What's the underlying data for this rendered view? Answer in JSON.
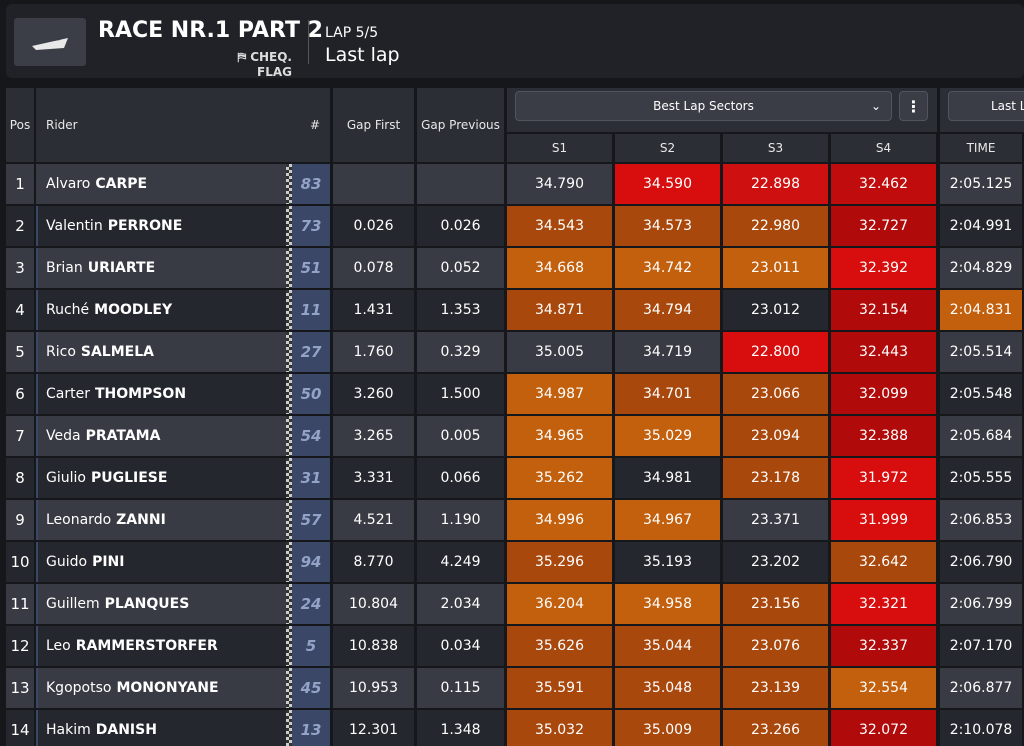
{
  "header": {
    "title": "RACE NR.1 PART 2",
    "flag": "CHEQ. FLAG",
    "lap": "LAP 5/5",
    "status": "Last lap"
  },
  "columns": {
    "pos": "Pos",
    "rider": "Rider",
    "number": "#",
    "gap_first": "Gap First",
    "gap_previous": "Gap Previous",
    "sectors_select": "Best Lap Sectors",
    "sectors": [
      "S1",
      "S2",
      "S3",
      "S4"
    ],
    "time": "TIME",
    "last_lap": "Last Lap"
  },
  "rows": [
    {
      "pos": "1",
      "first": "Alvaro",
      "last": "CARPE",
      "number": "83",
      "gap_first": "",
      "gap_previous": "",
      "sectors": [
        "34.790",
        "34.590",
        "22.898",
        "32.462"
      ],
      "sector_colors": [
        null,
        "#d80d0d",
        "#cf1010",
        "#c00c0c"
      ],
      "time": "2:05.125",
      "time_color": null
    },
    {
      "pos": "2",
      "first": "Valentin",
      "last": "PERRONE",
      "number": "73",
      "gap_first": "0.026",
      "gap_previous": "0.026",
      "sectors": [
        "34.543",
        "34.573",
        "22.980",
        "32.727"
      ],
      "sector_colors": [
        "#a8480c",
        "#a8480c",
        "#a8480c",
        "#b00a0a"
      ],
      "time": "2:04.991",
      "time_color": null
    },
    {
      "pos": "3",
      "first": "Brian",
      "last": "URIARTE",
      "number": "51",
      "gap_first": "0.078",
      "gap_previous": "0.052",
      "sectors": [
        "34.668",
        "34.742",
        "23.011",
        "32.392"
      ],
      "sector_colors": [
        "#c2600e",
        "#c2600e",
        "#c2600e",
        "#d80d0d"
      ],
      "time": "2:04.829",
      "time_color": null
    },
    {
      "pos": "4",
      "first": "Ruché",
      "last": "MOODLEY",
      "number": "11",
      "gap_first": "1.431",
      "gap_previous": "1.353",
      "sectors": [
        "34.871",
        "34.794",
        "23.012",
        "32.154"
      ],
      "sector_colors": [
        "#a8480c",
        "#a8480c",
        null,
        "#b00a0a"
      ],
      "time": "2:04.831",
      "time_color": "#c2600e"
    },
    {
      "pos": "5",
      "first": "Rico",
      "last": "SALMELA",
      "number": "27",
      "gap_first": "1.760",
      "gap_previous": "0.329",
      "sectors": [
        "35.005",
        "34.719",
        "22.800",
        "32.443"
      ],
      "sector_colors": [
        null,
        null,
        "#d80d0d",
        "#b00a0a"
      ],
      "time": "2:05.514",
      "time_color": null
    },
    {
      "pos": "6",
      "first": "Carter",
      "last": "THOMPSON",
      "number": "50",
      "gap_first": "3.260",
      "gap_previous": "1.500",
      "sectors": [
        "34.987",
        "34.701",
        "23.066",
        "32.099"
      ],
      "sector_colors": [
        "#c2600e",
        "#a8480c",
        "#a8480c",
        "#b00a0a"
      ],
      "time": "2:05.548",
      "time_color": null
    },
    {
      "pos": "7",
      "first": "Veda",
      "last": "PRATAMA",
      "number": "54",
      "gap_first": "3.265",
      "gap_previous": "0.005",
      "sectors": [
        "34.965",
        "35.029",
        "23.094",
        "32.388"
      ],
      "sector_colors": [
        "#c2600e",
        "#c2600e",
        "#a8480c",
        "#b00a0a"
      ],
      "time": "2:05.684",
      "time_color": null
    },
    {
      "pos": "8",
      "first": "Giulio",
      "last": "PUGLIESE",
      "number": "31",
      "gap_first": "3.331",
      "gap_previous": "0.066",
      "sectors": [
        "35.262",
        "34.981",
        "23.178",
        "31.972"
      ],
      "sector_colors": [
        "#c2600e",
        null,
        "#a8480c",
        "#d80d0d"
      ],
      "time": "2:05.555",
      "time_color": null
    },
    {
      "pos": "9",
      "first": "Leonardo",
      "last": "ZANNI",
      "number": "57",
      "gap_first": "4.521",
      "gap_previous": "1.190",
      "sectors": [
        "34.996",
        "34.967",
        "23.371",
        "31.999"
      ],
      "sector_colors": [
        "#c2600e",
        "#c2600e",
        null,
        "#d80d0d"
      ],
      "time": "2:06.853",
      "time_color": null
    },
    {
      "pos": "10",
      "first": "Guido",
      "last": "PINI",
      "number": "94",
      "gap_first": "8.770",
      "gap_previous": "4.249",
      "sectors": [
        "35.296",
        "35.193",
        "23.202",
        "32.642"
      ],
      "sector_colors": [
        "#a8480c",
        null,
        null,
        "#a8480c"
      ],
      "time": "2:06.790",
      "time_color": null
    },
    {
      "pos": "11",
      "first": "Guillem",
      "last": "PLANQUES",
      "number": "24",
      "gap_first": "10.804",
      "gap_previous": "2.034",
      "sectors": [
        "36.204",
        "34.958",
        "23.156",
        "32.321"
      ],
      "sector_colors": [
        "#c2600e",
        "#c2600e",
        "#a8480c",
        "#d80d0d"
      ],
      "time": "2:06.799",
      "time_color": null
    },
    {
      "pos": "12",
      "first": "Leo",
      "last": "RAMMERSTORFER",
      "number": "5",
      "gap_first": "10.838",
      "gap_previous": "0.034",
      "sectors": [
        "35.626",
        "35.044",
        "23.076",
        "32.337"
      ],
      "sector_colors": [
        "#a8480c",
        "#a8480c",
        "#a8480c",
        "#b00a0a"
      ],
      "time": "2:07.170",
      "time_color": null
    },
    {
      "pos": "13",
      "first": "Kgopotso",
      "last": "MONONYANE",
      "number": "45",
      "gap_first": "10.953",
      "gap_previous": "0.115",
      "sectors": [
        "35.591",
        "35.048",
        "23.139",
        "32.554"
      ],
      "sector_colors": [
        "#a8480c",
        "#a8480c",
        "#a8480c",
        "#c2600e"
      ],
      "time": "2:06.877",
      "time_color": null
    },
    {
      "pos": "14",
      "first": "Hakim",
      "last": "DANISH",
      "number": "13",
      "gap_first": "12.301",
      "gap_previous": "1.348",
      "sectors": [
        "35.032",
        "35.009",
        "23.266",
        "32.072"
      ],
      "sector_colors": [
        "#a8480c",
        "#a8480c",
        "#a8480c",
        "#b00a0a"
      ],
      "time": "2:10.078",
      "time_color": null
    }
  ]
}
